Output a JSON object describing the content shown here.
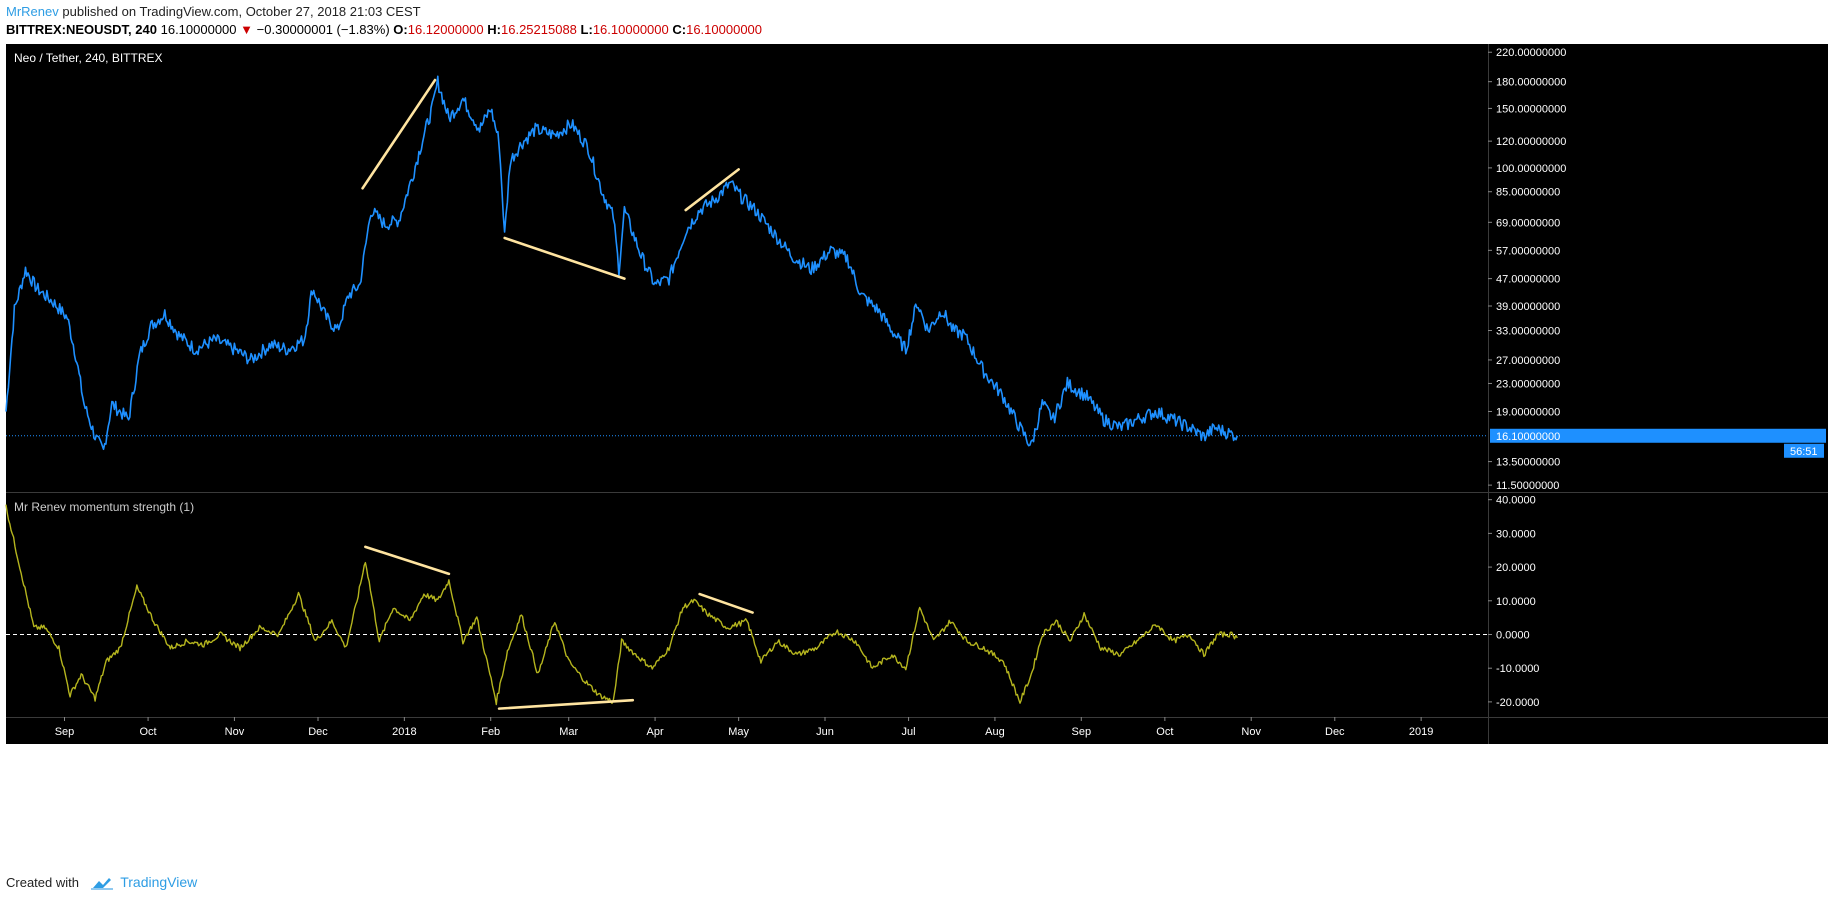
{
  "header": {
    "author": "MrRenev",
    "published_text": "published on TradingView.com, October 27, 2018 21:03 CEST",
    "symbol": "BITTREX:NEOUSDT, 240",
    "last": "16.10000000",
    "change": "−0.30000001 (−1.83%)",
    "open_label": "O:",
    "open": "16.12000000",
    "high_label": "H:",
    "high": "16.25215088",
    "low_label": "L:",
    "low": "16.10000000",
    "close_label": "C:",
    "close": "16.10000000"
  },
  "footer": {
    "created_with": "Created with",
    "brand": "TradingView"
  },
  "colors": {
    "background": "#000000",
    "price_line": "#1e90ff",
    "indicator_line": "#b5b51e",
    "trend_lines": "#ffe4a0",
    "axis_text": "#ffffff",
    "change_red": "#cc0000"
  },
  "chart_data": [
    {
      "type": "line",
      "title": "Neo / Tether, 240, BITTREX",
      "y_scale": "log",
      "y_ticks": [
        220,
        180,
        150,
        120,
        100,
        85,
        69,
        57,
        47,
        39,
        33,
        27,
        23,
        19,
        13.5,
        11.5
      ],
      "y_tick_labels": [
        "220.00000000",
        "180.00000000",
        "150.00000000",
        "120.00000000",
        "100.00000000",
        "85.00000000",
        "69.00000000",
        "57.00000000",
        "47.00000000",
        "39.00000000",
        "33.00000000",
        "27.00000000",
        "23.00000000",
        "19.00000000",
        "13.50000000",
        "11.50000000"
      ],
      "last_price": 16.1,
      "last_price_label": "16.10000000",
      "countdown_label": "56:51",
      "x_start": "2017-08-11",
      "x_end": "2019-01-25",
      "series": [
        {
          "x": [
            "2017-08-11",
            "2017-08-14",
            "2017-08-18",
            "2017-08-22",
            "2017-08-28",
            "2017-09-02",
            "2017-09-05",
            "2017-09-08",
            "2017-09-12",
            "2017-09-15",
            "2017-09-18",
            "2017-09-24",
            "2017-09-28",
            "2017-10-02",
            "2017-10-07",
            "2017-10-12",
            "2017-10-18",
            "2017-10-25",
            "2017-11-01",
            "2017-11-07",
            "2017-11-14",
            "2017-11-20",
            "2017-11-26",
            "2017-11-29",
            "2017-12-04",
            "2017-12-08",
            "2017-12-12",
            "2017-12-16",
            "2017-12-20",
            "2017-12-25",
            "2017-12-30",
            "2018-01-04",
            "2018-01-08",
            "2018-01-11",
            "2018-01-13",
            "2018-01-17",
            "2018-01-22",
            "2018-01-28",
            "2018-02-01",
            "2018-02-04",
            "2018-02-06",
            "2018-02-08",
            "2018-02-12",
            "2018-02-17",
            "2018-02-24",
            "2018-03-02",
            "2018-03-08",
            "2018-03-13",
            "2018-03-17",
            "2018-03-19",
            "2018-03-21",
            "2018-03-27",
            "2018-04-01",
            "2018-04-06",
            "2018-04-12",
            "2018-04-17",
            "2018-04-22",
            "2018-04-28",
            "2018-05-02",
            "2018-05-07",
            "2018-05-13",
            "2018-05-20",
            "2018-05-27",
            "2018-06-03",
            "2018-06-09",
            "2018-06-14",
            "2018-06-20",
            "2018-06-25",
            "2018-06-30",
            "2018-07-04",
            "2018-07-08",
            "2018-07-13",
            "2018-07-17",
            "2018-07-21",
            "2018-07-28",
            "2018-08-04",
            "2018-08-10",
            "2018-08-14",
            "2018-08-18",
            "2018-08-22",
            "2018-08-27",
            "2018-09-03",
            "2018-09-09",
            "2018-09-15",
            "2018-09-21",
            "2018-09-28",
            "2018-10-04",
            "2018-10-10",
            "2018-10-15",
            "2018-10-19",
            "2018-10-23",
            "2018-10-27"
          ],
          "values": [
            19,
            38,
            50,
            44,
            40,
            36,
            28,
            20,
            16,
            14.5,
            20,
            18,
            28,
            34,
            37,
            32,
            29,
            31,
            29,
            27,
            30,
            29,
            31,
            44,
            36,
            33,
            42,
            45,
            75,
            68,
            70,
            95,
            125,
            150,
            180,
            140,
            160,
            130,
            150,
            120,
            63,
            105,
            118,
            130,
            125,
            135,
            115,
            85,
            72,
            50,
            75,
            55,
            45,
            47,
            65,
            75,
            80,
            90,
            82,
            75,
            65,
            55,
            50,
            57,
            54,
            42,
            38,
            33,
            29,
            40,
            33,
            38,
            33,
            32,
            25,
            21,
            17,
            15,
            20,
            18,
            23,
            21,
            18,
            17,
            18,
            19,
            18,
            17,
            16,
            17,
            16.5,
            16.1
          ]
        }
      ]
    },
    {
      "type": "line",
      "title": "Mr Renev momentum strength (1)",
      "y_ticks": [
        40,
        30,
        20,
        10,
        0,
        -10,
        -20
      ],
      "y_tick_labels": [
        "40.0000",
        "30.0000",
        "20.0000",
        "10.0000",
        "0.0000",
        "-10.0000",
        "-20.0000"
      ],
      "zero_line": 0,
      "series": [
        {
          "x": [
            "2017-08-11",
            "2017-08-16",
            "2017-08-21",
            "2017-08-25",
            "2017-08-30",
            "2017-09-03",
            "2017-09-07",
            "2017-09-12",
            "2017-09-16",
            "2017-09-21",
            "2017-09-27",
            "2017-10-03",
            "2017-10-09",
            "2017-10-15",
            "2017-10-21",
            "2017-10-27",
            "2017-11-03",
            "2017-11-10",
            "2017-11-17",
            "2017-11-24",
            "2017-11-30",
            "2017-12-06",
            "2017-12-11",
            "2017-12-15",
            "2017-12-18",
            "2017-12-23",
            "2017-12-28",
            "2018-01-03",
            "2018-01-08",
            "2018-01-13",
            "2018-01-17",
            "2018-01-22",
            "2018-01-27",
            "2018-02-03",
            "2018-02-07",
            "2018-02-12",
            "2018-02-18",
            "2018-02-24",
            "2018-03-01",
            "2018-03-07",
            "2018-03-12",
            "2018-03-17",
            "2018-03-20",
            "2018-03-25",
            "2018-03-31",
            "2018-04-06",
            "2018-04-11",
            "2018-04-15",
            "2018-04-20",
            "2018-04-27",
            "2018-05-04",
            "2018-05-09",
            "2018-05-15",
            "2018-05-22",
            "2018-05-29",
            "2018-06-05",
            "2018-06-12",
            "2018-06-18",
            "2018-06-25",
            "2018-06-30",
            "2018-07-05",
            "2018-07-10",
            "2018-07-16",
            "2018-07-22",
            "2018-07-28",
            "2018-08-04",
            "2018-08-10",
            "2018-08-14",
            "2018-08-18",
            "2018-08-23",
            "2018-08-28",
            "2018-09-02",
            "2018-09-08",
            "2018-09-15",
            "2018-09-21",
            "2018-09-28",
            "2018-10-04",
            "2018-10-10",
            "2018-10-15",
            "2018-10-20",
            "2018-10-25",
            "2018-10-27"
          ],
          "values": [
            38,
            20,
            2,
            2,
            -4,
            -18,
            -12,
            -19,
            -8,
            -4,
            14,
            4,
            -4,
            -2,
            -3,
            0,
            -4,
            2,
            0,
            12,
            -2,
            4,
            -4,
            10,
            22,
            -2,
            8,
            4,
            12,
            10,
            16,
            -2,
            5,
            -20,
            -5,
            6,
            -12,
            4,
            -8,
            -14,
            -18,
            -20,
            -2,
            -6,
            -10,
            -4,
            8,
            10,
            6,
            2,
            4,
            -8,
            -2,
            -6,
            -4,
            1,
            -2,
            -10,
            -6,
            -10,
            8,
            -2,
            4,
            -2,
            -4,
            -8,
            -20,
            -12,
            0,
            4,
            -2,
            6,
            -4,
            -6,
            -2,
            3,
            -2,
            0,
            -6,
            0,
            0,
            -1
          ]
        }
      ]
    }
  ],
  "x_axis": {
    "tick_dates": [
      "2017-09-01",
      "2017-10-01",
      "2017-11-01",
      "2017-12-01",
      "2018-01-01",
      "2018-02-01",
      "2018-03-01",
      "2018-04-01",
      "2018-05-01",
      "2018-06-01",
      "2018-07-01",
      "2018-08-01",
      "2018-09-01",
      "2018-10-01",
      "2018-11-01",
      "2018-12-01",
      "2019-01-01"
    ],
    "tick_labels": [
      "Sep",
      "Oct",
      "Nov",
      "Dec",
      "2018",
      "Feb",
      "Mar",
      "Apr",
      "May",
      "Jun",
      "Jul",
      "Aug",
      "Sep",
      "Oct",
      "Nov",
      "Dec",
      "2019"
    ]
  },
  "annotations": [
    {
      "pane": 0,
      "from": [
        "2017-12-17",
        87
      ],
      "to": [
        "2018-01-12",
        182
      ]
    },
    {
      "pane": 0,
      "from": [
        "2018-02-06",
        62
      ],
      "to": [
        "2018-03-21",
        47
      ]
    },
    {
      "pane": 0,
      "from": [
        "2018-04-12",
        75
      ],
      "to": [
        "2018-05-01",
        99
      ]
    },
    {
      "pane": 1,
      "from": [
        "2017-12-18",
        26
      ],
      "to": [
        "2018-01-17",
        18
      ]
    },
    {
      "pane": 1,
      "from": [
        "2018-02-04",
        -22
      ],
      "to": [
        "2018-03-24",
        -19.5
      ]
    },
    {
      "pane": 1,
      "from": [
        "2018-04-17",
        12
      ],
      "to": [
        "2018-05-06",
        6.5
      ]
    }
  ]
}
